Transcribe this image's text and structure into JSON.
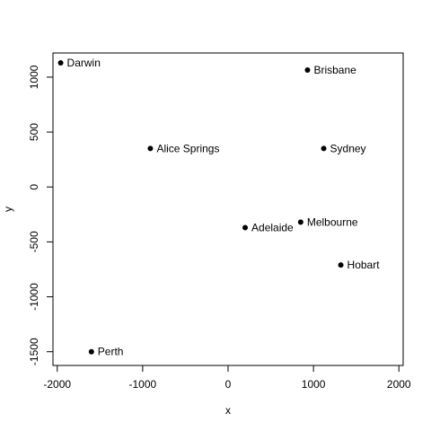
{
  "chart_data": {
    "type": "scatter",
    "title": "",
    "xlabel": "x",
    "ylabel": "y",
    "xlim": [
      -2050,
      2050
    ],
    "ylim": [
      -1625,
      1220
    ],
    "x_ticks": [
      -2000,
      -1000,
      0,
      1000,
      2000
    ],
    "x_tick_labels": [
      "-2000",
      "-1000",
      "0",
      "1000",
      "2000"
    ],
    "y_ticks": [
      -1500,
      -1000,
      -500,
      0,
      500,
      1000
    ],
    "y_tick_labels": [
      "-1500",
      "-1000",
      "-500",
      "0",
      "500",
      "1000"
    ],
    "grid": false,
    "points": [
      {
        "label": "Darwin",
        "x": -1960,
        "y": 1130
      },
      {
        "label": "Brisbane",
        "x": 930,
        "y": 1065
      },
      {
        "label": "Alice Springs",
        "x": -910,
        "y": 350
      },
      {
        "label": "Sydney",
        "x": 1120,
        "y": 350
      },
      {
        "label": "Adelaide",
        "x": 200,
        "y": -370
      },
      {
        "label": "Melbourne",
        "x": 850,
        "y": -320
      },
      {
        "label": "Hobart",
        "x": 1320,
        "y": -710
      },
      {
        "label": "Perth",
        "x": -1600,
        "y": -1500
      }
    ],
    "colors": {
      "points": "#000000",
      "axes": "#000000"
    }
  }
}
